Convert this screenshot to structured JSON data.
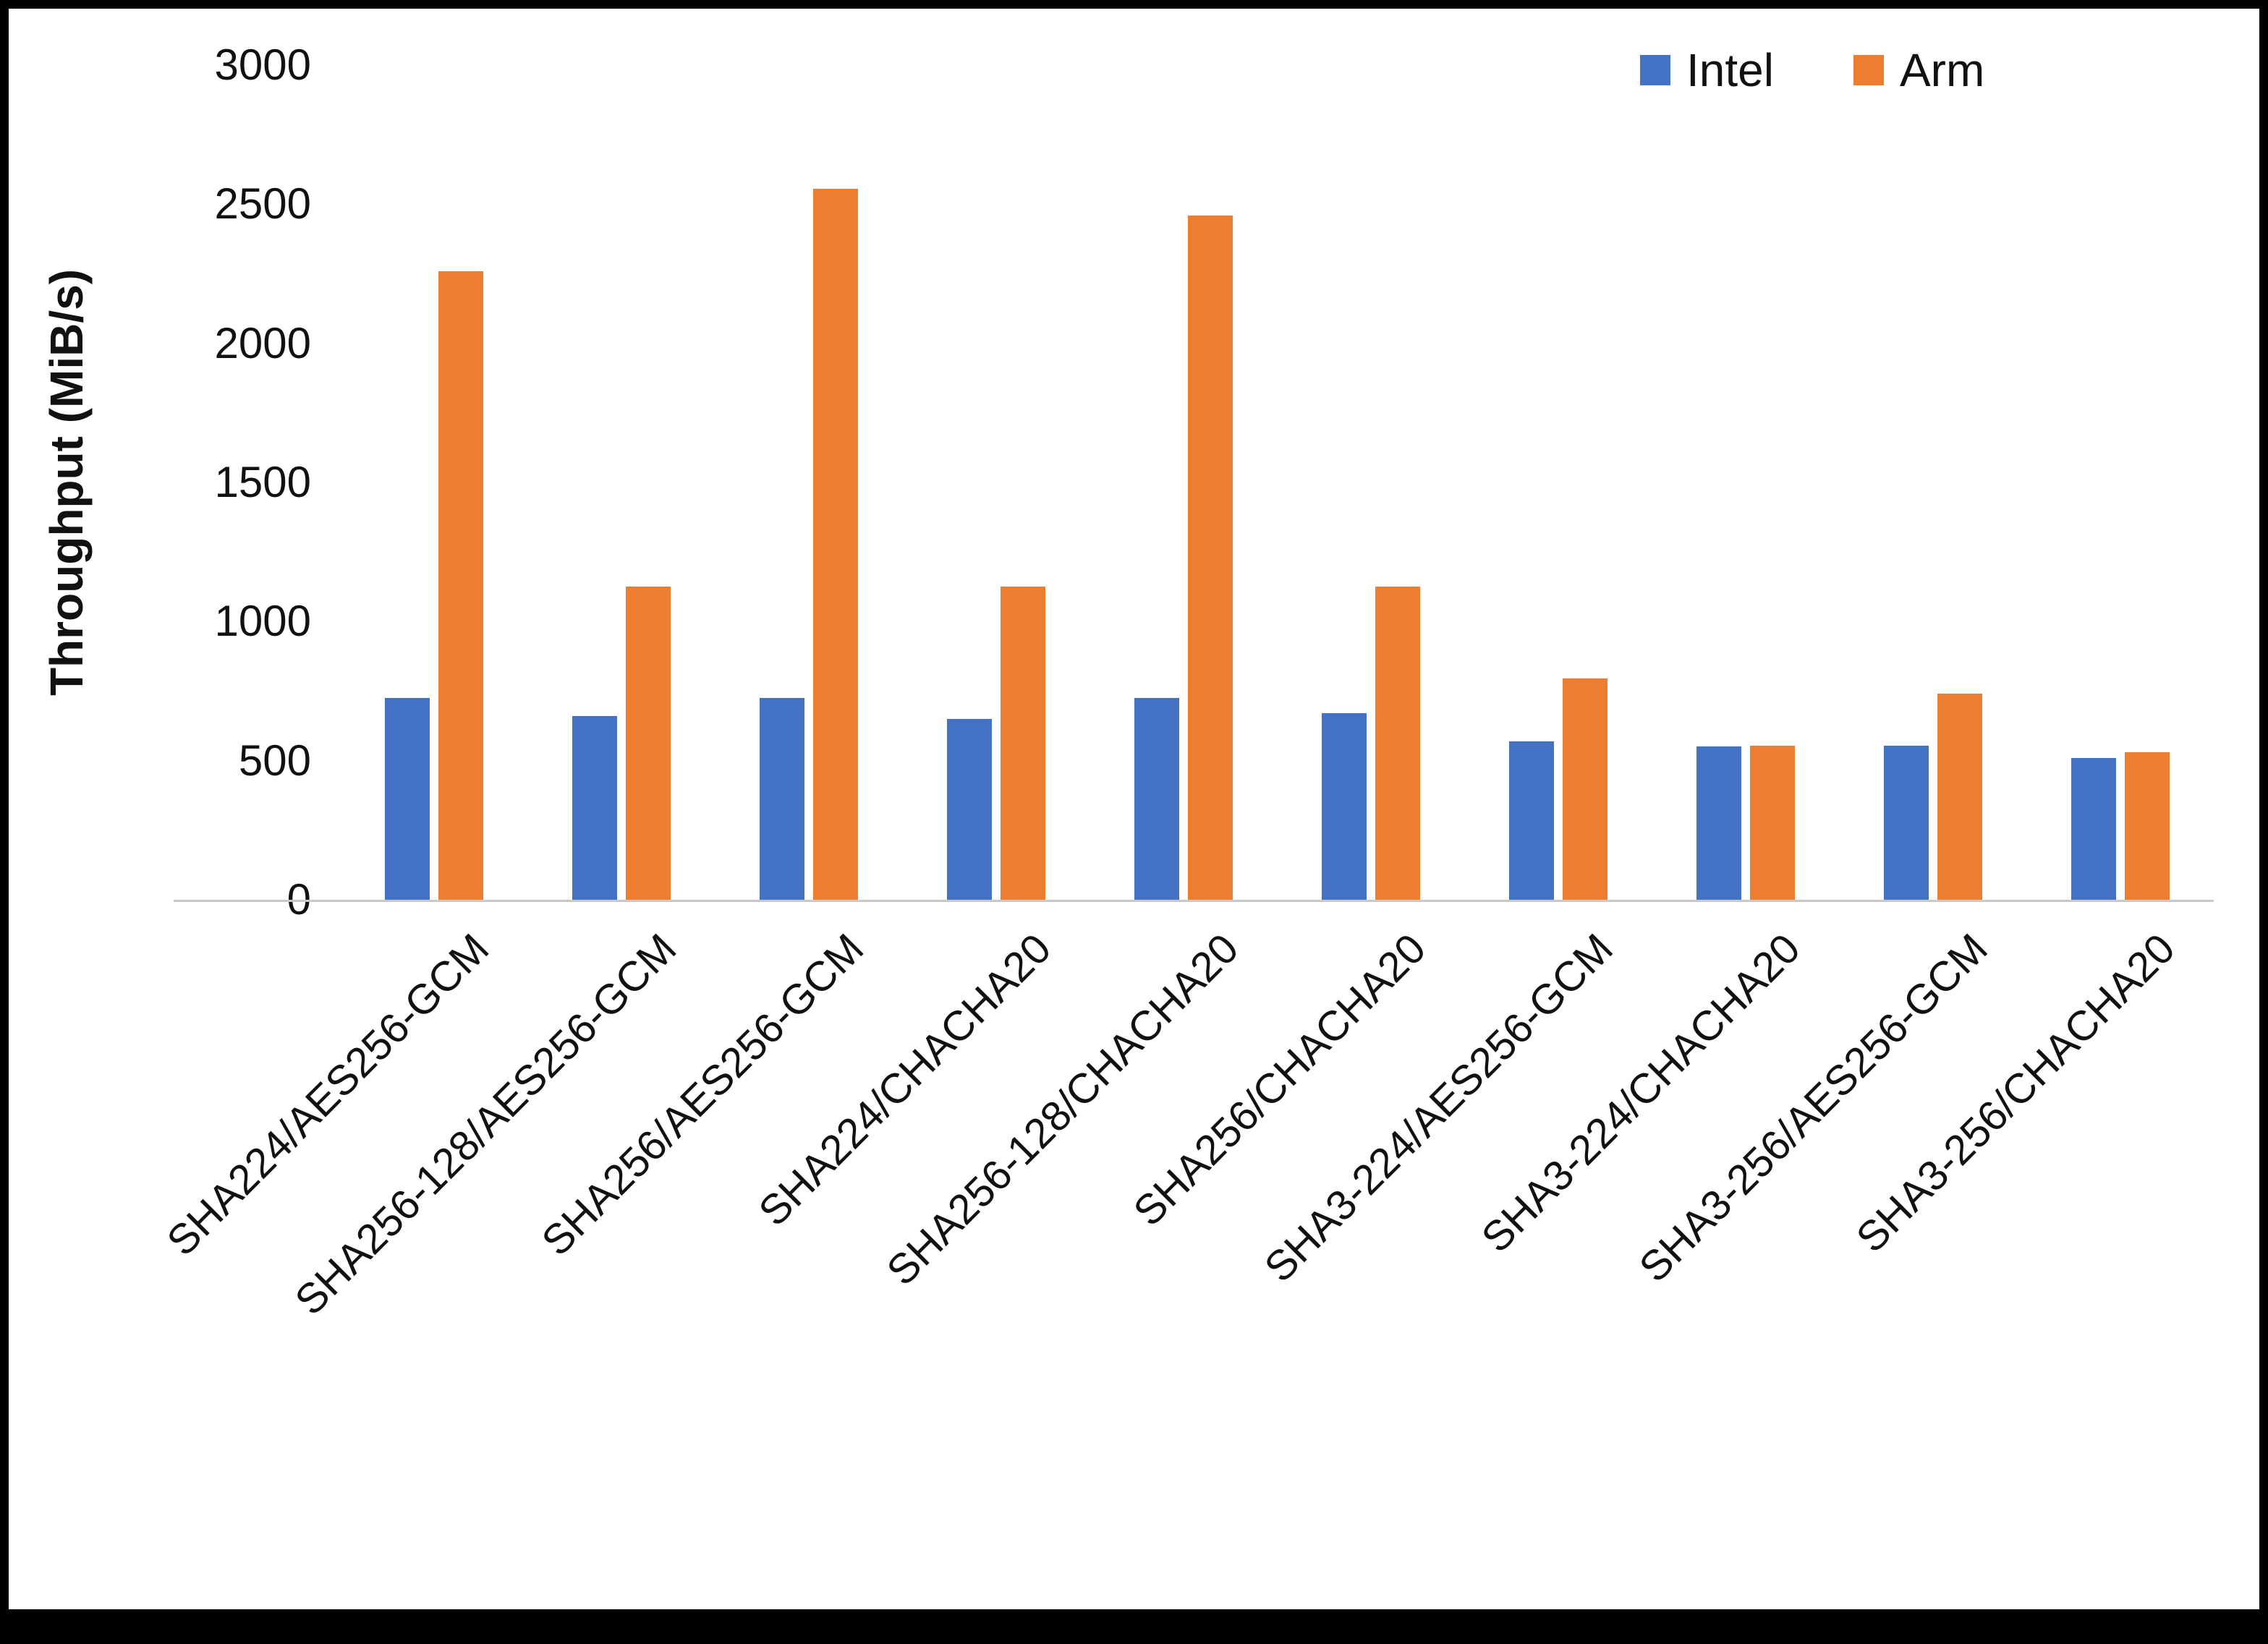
{
  "chart_data": {
    "type": "bar",
    "title": "",
    "xlabel": "",
    "ylabel": "Throughput (MiB/s)",
    "ylim": [
      0,
      3000
    ],
    "yticks": [
      0,
      500,
      1000,
      1500,
      2000,
      2500,
      3000
    ],
    "grid": false,
    "legend_position": "top-right",
    "categories": [
      "SHA224/AES256-GCM",
      "SHA256-128/AES256-GCM",
      "SHA256/AES256-GCM",
      "SHA224/CHACHA20",
      "SHA256-128/CHACHA20",
      "SHA256/CHACHA20",
      "SHA3-224/AES256-GCM",
      "SHA3-224/CHACHA20",
      "SHA3-256/AES256-GCM",
      "SHA3-256/CHACHA20"
    ],
    "series": [
      {
        "name": "Intel",
        "color": "#4472C4",
        "values": [
          725,
          660,
          725,
          650,
          725,
          670,
          570,
          550,
          555,
          510
        ]
      },
      {
        "name": "Arm",
        "color": "#ED7D31",
        "values": [
          2260,
          1125,
          2555,
          1125,
          2460,
          1125,
          795,
          555,
          740,
          530
        ]
      }
    ],
    "axis_line_color": "#c9c7c7"
  }
}
